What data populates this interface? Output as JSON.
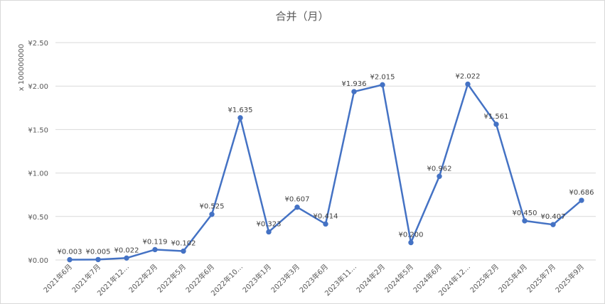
{
  "chart_data": {
    "type": "line",
    "title": "合并（月）",
    "ylabel": "x 100000000",
    "xlabel": "",
    "ylim": [
      0,
      2.5
    ],
    "ytick_values": [
      0,
      0.5,
      1.0,
      1.5,
      2.0,
      2.5
    ],
    "yticks": [
      "¥0.00",
      "¥0.50",
      "¥1.00",
      "¥1.50",
      "¥2.00",
      "¥2.50"
    ],
    "grid": true,
    "legend": "none",
    "series_color": "#4472c4",
    "categories": [
      "2021年6月",
      "2021年7月",
      "2021年12…",
      "2022年2月",
      "2022年5月",
      "2022年6月",
      "2022年10…",
      "2023年1月",
      "2023年3月",
      "2023年6月",
      "2023年11…",
      "2024年2月",
      "2024年5月",
      "2024年6月",
      "2024年12…",
      "2025年2月",
      "2025年4月",
      "2025年7月",
      "2025年9月"
    ],
    "values": [
      0.003,
      0.005,
      0.022,
      0.119,
      0.102,
      0.525,
      1.635,
      0.323,
      0.607,
      0.414,
      1.936,
      2.015,
      0.2,
      0.962,
      2.022,
      1.561,
      0.45,
      0.407,
      0.686
    ],
    "data_labels": [
      "¥0.003",
      "¥0.005",
      "¥0.022",
      "¥0.119",
      "¥0.102",
      "¥0.525",
      "¥1.635",
      "¥0.323",
      "¥0.607",
      "¥0.414",
      "¥1.936",
      "¥2.015",
      "¥0.200",
      "¥0.962",
      "¥2.022",
      "¥1.561",
      "¥0.450",
      "¥0.407",
      "¥0.686"
    ]
  }
}
